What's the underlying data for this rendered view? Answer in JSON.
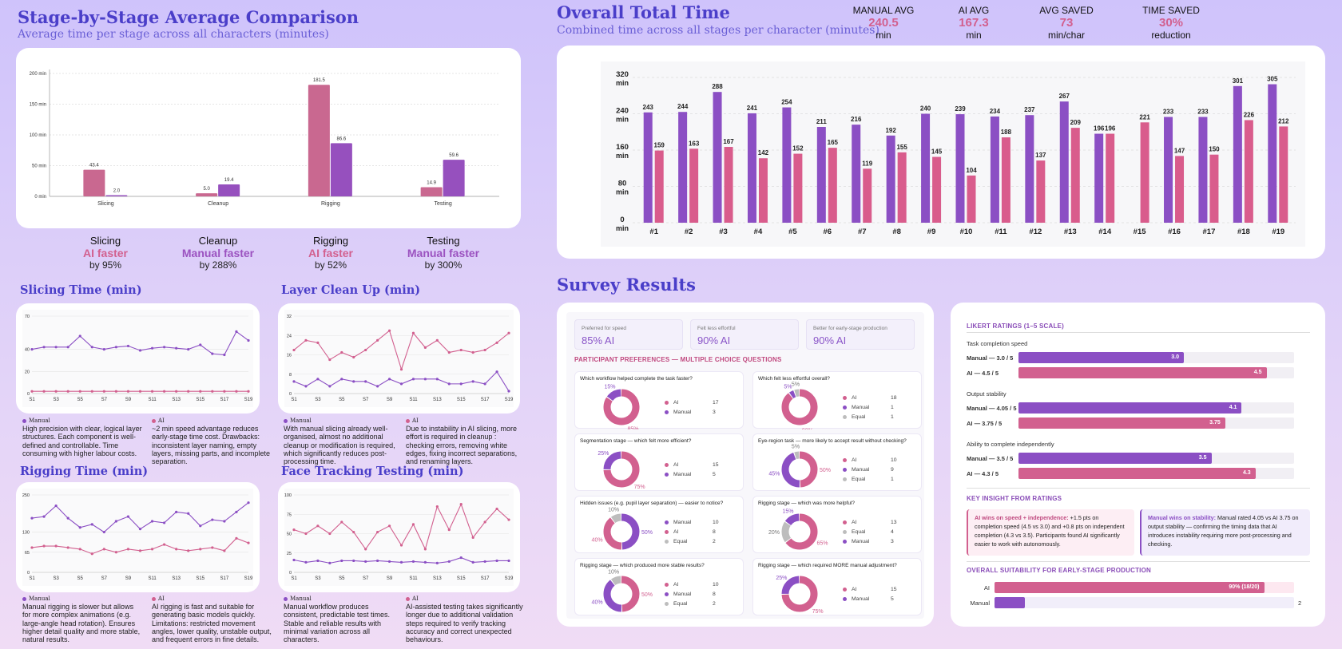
{
  "colors": {
    "manual": "#d2608f",
    "ai": "#8b4fc4",
    "title": "#4a3ec9"
  },
  "stage": {
    "title": "Stage-by-Stage Average Comparison",
    "subtitle": "Average time per stage across all characters (minutes)",
    "summary": [
      {
        "stage": "Slicing",
        "winner": "AI faster",
        "by": "by 95%",
        "color": "#d2608f"
      },
      {
        "stage": "Cleanup",
        "winner": "Manual faster",
        "by": "by 288%",
        "color": "#9b52c0"
      },
      {
        "stage": "Rigging",
        "winner": "AI faster",
        "by": "by 52%",
        "color": "#d2608f"
      },
      {
        "stage": "Testing",
        "winner": "Manual faster",
        "by": "by 300%",
        "color": "#9b52c0"
      }
    ]
  },
  "overall": {
    "title": "Overall Total Time",
    "subtitle": "Combined time across all stages per character (minutes)",
    "kpis": [
      {
        "label": "MANUAL AVG",
        "value": "240.5",
        "unit": "min",
        "color": "#d2608f"
      },
      {
        "label": "AI AVG",
        "value": "167.3",
        "unit": "min",
        "color": "#d2608f"
      },
      {
        "label": "AVG SAVED",
        "value": "73",
        "unit": "min/char",
        "color": "#d2608f"
      },
      {
        "label": "TIME SAVED",
        "value": "30%",
        "unit": "reduction",
        "color": "#d2608f"
      }
    ]
  },
  "panels": {
    "slicing": {
      "title": "Slicing Time (min)",
      "manual_label": "Manual",
      "ai_label": "AI",
      "manual_note": "High precision with clear, logical layer structures. Each component is well-defined and controllable. Time consuming with higher labour costs.",
      "ai_note": "~2 min speed advantage reduces early-stage time cost. Drawbacks: inconsistent layer naming, empty layers, missing parts, and incomplete separation."
    },
    "cleanup": {
      "title": "Layer Clean Up (min)",
      "manual_label": "Manual",
      "ai_label": "AI",
      "manual_note": "With manual slicing already well-organised, almost no additional cleanup or modification is required, which significantly reduces post-processing time.",
      "ai_note": "Due to instability in AI slicing, more effort is required in cleanup : checking errors, removing white edges, fixing incorrect separations, and renaming layers."
    },
    "rigging": {
      "title": "Rigging Time (min)",
      "manual_label": "Manual",
      "ai_label": "AI",
      "manual_note": "Manual rigging is slower but allows for more complex animations (e.g. large-angle head rotation). Ensures higher detail quality and more stable, natural results.",
      "ai_note": "AI rigging is fast and suitable for generating basic models quickly. Limitations: restricted movement angles, lower quality, unstable output, and frequent errors in fine details."
    },
    "testing": {
      "title": "Face Tracking Testing (min)",
      "manual_label": "Manual",
      "ai_label": "AI",
      "manual_note": "Manual workflow produces consistent, predictable test times. Stable and reliable results with minimal variation across all characters.",
      "ai_note": "AI-assisted testing takes significantly longer due to additional validation steps required to verify tracking accuracy and correct unexpected behaviours."
    }
  },
  "survey": {
    "title": "Survey Results",
    "stats": [
      {
        "label": "Preferred for speed",
        "value": "85% AI"
      },
      {
        "label": "Felt less effortful",
        "value": "90% AI"
      },
      {
        "label": "Better for early-stage production",
        "value": "90% AI"
      }
    ],
    "pref_heading": "PARTICIPANT PREFERENCES — MULTIPLE CHOICE QUESTIONS",
    "questions": [
      {
        "q": "Which workflow helped complete the task faster?",
        "items": [
          {
            "label": "AI",
            "count": "17",
            "pct": "85%",
            "color": "#d2608f"
          },
          {
            "label": "Manual",
            "count": "3",
            "pct": "15%",
            "color": "#8b4fc4"
          }
        ]
      },
      {
        "q": "Which felt less effortful overall?",
        "items": [
          {
            "label": "AI",
            "count": "18",
            "pct": "90%",
            "color": "#d2608f"
          },
          {
            "label": "Manual",
            "count": "1",
            "pct": "5%",
            "color": "#8b4fc4"
          },
          {
            "label": "Equal",
            "count": "1",
            "pct": "5%",
            "color": "#bdbdbd"
          }
        ]
      },
      {
        "q": "Segmentation stage — which felt more efficient?",
        "items": [
          {
            "label": "AI",
            "count": "15",
            "pct": "75%",
            "color": "#d2608f"
          },
          {
            "label": "Manual",
            "count": "5",
            "pct": "25%",
            "color": "#8b4fc4"
          }
        ]
      },
      {
        "q": "Eye-region task — more likely to accept result without checking?",
        "items": [
          {
            "label": "AI",
            "count": "10",
            "pct": "50%",
            "color": "#d2608f"
          },
          {
            "label": "Manual",
            "count": "9",
            "pct": "45%",
            "color": "#8b4fc4"
          },
          {
            "label": "Equal",
            "count": "1",
            "pct": "5%",
            "color": "#bdbdbd"
          }
        ]
      },
      {
        "q": "Hidden issues (e.g. pupil layer separation) — easier to notice?",
        "items": [
          {
            "label": "Manual",
            "count": "10",
            "pct": "50%",
            "color": "#8b4fc4"
          },
          {
            "label": "AI",
            "count": "8",
            "pct": "40%",
            "color": "#d2608f"
          },
          {
            "label": "Equal",
            "count": "2",
            "pct": "10%",
            "color": "#bdbdbd"
          }
        ]
      },
      {
        "q": "Rigging stage — which was more helpful?",
        "items": [
          {
            "label": "AI",
            "count": "13",
            "pct": "65%",
            "color": "#d2608f"
          },
          {
            "label": "Equal",
            "count": "4",
            "pct": "20%",
            "color": "#bdbdbd"
          },
          {
            "label": "Manual",
            "count": "3",
            "pct": "15%",
            "color": "#8b4fc4"
          }
        ]
      },
      {
        "q": "Rigging stage — which produced more stable results?",
        "items": [
          {
            "label": "AI",
            "count": "10",
            "pct": "50%",
            "color": "#d2608f"
          },
          {
            "label": "Manual",
            "count": "8",
            "pct": "40%",
            "color": "#8b4fc4"
          },
          {
            "label": "Equal",
            "count": "2",
            "pct": "10%",
            "color": "#bdbdbd"
          }
        ]
      },
      {
        "q": "Rigging stage — which required MORE manual adjustment?",
        "items": [
          {
            "label": "AI",
            "count": "15",
            "pct": "75%",
            "color": "#d2608f"
          },
          {
            "label": "Manual",
            "count": "5",
            "pct": "25%",
            "color": "#8b4fc4"
          }
        ]
      }
    ],
    "likert_heading": "LIKERT RATINGS (1–5 SCALE)",
    "likert": [
      {
        "group": "Task completion speed",
        "rows": [
          {
            "label": "Manual — 3.0 / 5",
            "value": 3.0,
            "text": "3.0",
            "color": "#8b4fc4"
          },
          {
            "label": "AI — 4.5 / 5",
            "value": 4.5,
            "text": "4.5",
            "color": "#d2608f"
          }
        ]
      },
      {
        "group": "Output stability",
        "rows": [
          {
            "label": "Manual — 4.05 / 5",
            "value": 4.05,
            "text": "4.1",
            "color": "#8b4fc4"
          },
          {
            "label": "AI — 3.75 / 5",
            "value": 3.75,
            "text": "3.75",
            "color": "#d2608f"
          }
        ]
      },
      {
        "group": "Ability to complete independently",
        "rows": [
          {
            "label": "Manual — 3.5 / 5",
            "value": 3.5,
            "text": "3.5",
            "color": "#8b4fc4"
          },
          {
            "label": "AI — 4.3 / 5",
            "value": 4.3,
            "text": "4.3",
            "color": "#d2608f"
          }
        ]
      }
    ],
    "insight_heading": "KEY INSIGHT FROM RATINGS",
    "insight_ai_bold": "AI wins on speed + independence:",
    "insight_ai": " +1.5 pts on completion speed (4.5 vs 3.0) and +0.8 pts on independent completion (4.3 vs 3.5). Participants found AI significantly easier to work with autonomously.",
    "insight_manual_bold": "Manual wins on stability:",
    "insight_manual": " Manual rated 4.05 vs AI 3.75 on output stability — confirming the timing data that AI introduces instability requiring more post-processing and checking.",
    "suit_heading": "OVERALL SUITABILITY FOR EARLY-STAGE PRODUCTION",
    "suit": [
      {
        "label": "AI",
        "value": 18,
        "text": "90% (18/20)",
        "color": "#d2608f"
      },
      {
        "label": "Manual",
        "value": 2,
        "text": "2",
        "color": "#8b4fc4"
      }
    ]
  },
  "chart_data": [
    {
      "type": "bar",
      "title": "Stage-by-Stage Average Comparison",
      "categories": [
        "Slicing",
        "Cleanup",
        "Rigging",
        "Testing"
      ],
      "ylim": [
        0,
        200
      ],
      "yticks": [
        0,
        50,
        100,
        150,
        200
      ],
      "yunit": "min",
      "series": [
        {
          "name": "Manual",
          "values": [
            43.4,
            5.0,
            181.5,
            14.9
          ],
          "labels": [
            "43.4",
            "5.0",
            "181.5",
            "14.9"
          ]
        },
        {
          "name": "AI",
          "values": [
            2.0,
            19.4,
            86.6,
            59.6
          ],
          "labels": [
            "2.0",
            "19.4",
            "86.6",
            "59.6"
          ]
        }
      ]
    },
    {
      "type": "bar",
      "title": "Overall Total Time",
      "categories": [
        "#1",
        "#2",
        "#3",
        "#4",
        "#5",
        "#6",
        "#7",
        "#8",
        "#9",
        "#10",
        "#11",
        "#12",
        "#13",
        "#14",
        "#15",
        "#16",
        "#17",
        "#18",
        "#19"
      ],
      "ylim": [
        0,
        320
      ],
      "yticks": [
        0,
        80,
        160,
        240,
        320
      ],
      "yunit": "min",
      "series": [
        {
          "name": "Manual",
          "values": [
            243,
            244,
            288,
            241,
            254,
            211,
            216,
            192,
            240,
            239,
            234,
            237,
            267,
            196,
            null,
            233,
            233,
            301,
            305
          ]
        },
        {
          "name": "AI",
          "values": [
            159,
            163,
            167,
            142,
            152,
            165,
            119,
            155,
            145,
            104,
            188,
            137,
            209,
            196,
            221,
            147,
            150,
            226,
            212
          ]
        }
      ]
    },
    {
      "type": "line",
      "title": "Slicing Time (min)",
      "x": [
        "S1",
        "S2",
        "S3",
        "S4",
        "S5",
        "S6",
        "S7",
        "S8",
        "S9",
        "S10",
        "S11",
        "S12",
        "S13",
        "S14",
        "S15",
        "S16",
        "S17",
        "S18",
        "S19"
      ],
      "xticks": [
        "S1",
        "S3",
        "S5",
        "S7",
        "S9",
        "S11",
        "S13",
        "S15",
        "S17",
        "S19"
      ],
      "ylim": [
        0,
        70
      ],
      "yticks": [
        0,
        20,
        40,
        70
      ],
      "series": [
        {
          "name": "Manual",
          "values": [
            40,
            42,
            42,
            42,
            52,
            42,
            40,
            42,
            43,
            39,
            41,
            42,
            41,
            40,
            44,
            36,
            35,
            56,
            48
          ]
        },
        {
          "name": "AI",
          "values": [
            2,
            2,
            2,
            2,
            2,
            2,
            2,
            2,
            2,
            2,
            2,
            2,
            2,
            2,
            2,
            2,
            2,
            2,
            2
          ]
        }
      ]
    },
    {
      "type": "line",
      "title": "Layer Clean Up (min)",
      "x": [
        "S1",
        "S2",
        "S3",
        "S4",
        "S5",
        "S6",
        "S7",
        "S8",
        "S9",
        "S10",
        "S11",
        "S12",
        "S13",
        "S14",
        "S15",
        "S16",
        "S17",
        "S18",
        "S19"
      ],
      "xticks": [
        "S1",
        "S3",
        "S5",
        "S7",
        "S9",
        "S11",
        "S13",
        "S15",
        "S17",
        "S19"
      ],
      "ylim": [
        0,
        32
      ],
      "yticks": [
        0,
        8,
        16,
        24,
        32
      ],
      "series": [
        {
          "name": "AI",
          "values": [
            18,
            22,
            21,
            14,
            17,
            15,
            18,
            22,
            26,
            10,
            25,
            19,
            22,
            17,
            18,
            17,
            18,
            21,
            25
          ]
        },
        {
          "name": "Manual",
          "values": [
            5,
            3,
            6,
            3,
            6,
            5,
            5,
            3,
            6,
            4,
            6,
            6,
            6,
            4,
            4,
            5,
            4,
            9,
            1
          ]
        }
      ]
    },
    {
      "type": "line",
      "title": "Rigging Time (min)",
      "x": [
        "S1",
        "S2",
        "S3",
        "S4",
        "S5",
        "S6",
        "S7",
        "S8",
        "S9",
        "S10",
        "S11",
        "S12",
        "S13",
        "S14",
        "S15",
        "S16",
        "S17",
        "S18",
        "S19"
      ],
      "xticks": [
        "S1",
        "S3",
        "S5",
        "S7",
        "S9",
        "S11",
        "S13",
        "S15",
        "S17",
        "S19"
      ],
      "ylim": [
        0,
        250
      ],
      "yticks": [
        0,
        65,
        130,
        250
      ],
      "series": [
        {
          "name": "Manual",
          "values": [
            175,
            180,
            215,
            175,
            145,
            155,
            130,
            165,
            180,
            140,
            165,
            160,
            195,
            190,
            150,
            170,
            165,
            195,
            225
          ]
        },
        {
          "name": "AI",
          "values": [
            80,
            85,
            85,
            80,
            75,
            60,
            75,
            65,
            75,
            70,
            75,
            90,
            75,
            70,
            75,
            80,
            70,
            110,
            95
          ]
        }
      ]
    },
    {
      "type": "line",
      "title": "Face Tracking Testing (min)",
      "x": [
        "S1",
        "S2",
        "S3",
        "S4",
        "S5",
        "S6",
        "S7",
        "S8",
        "S9",
        "S10",
        "S11",
        "S12",
        "S13",
        "S14",
        "S15",
        "S16",
        "S17",
        "S18",
        "S19"
      ],
      "xticks": [
        "S1",
        "S3",
        "S5",
        "S7",
        "S9",
        "S11",
        "S13",
        "S15",
        "S17",
        "S19"
      ],
      "ylim": [
        0,
        100
      ],
      "yticks": [
        0,
        25,
        50,
        75,
        100
      ],
      "series": [
        {
          "name": "AI",
          "values": [
            55,
            50,
            60,
            50,
            65,
            52,
            30,
            52,
            60,
            35,
            62,
            30,
            85,
            55,
            88,
            45,
            65,
            82,
            68
          ]
        },
        {
          "name": "Manual",
          "values": [
            16,
            13,
            15,
            12,
            15,
            15,
            14,
            15,
            14,
            13,
            14,
            13,
            12,
            14,
            19,
            13,
            14,
            15,
            15
          ]
        }
      ]
    }
  ]
}
